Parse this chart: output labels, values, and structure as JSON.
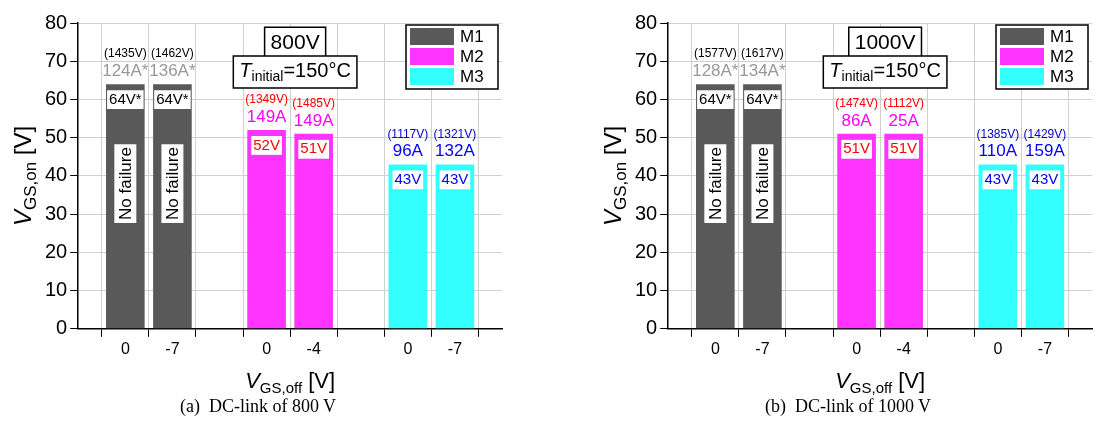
{
  "chart_data": [
    {
      "type": "bar",
      "categories": [
        null,
        "0",
        "-7",
        null,
        "0",
        "-4",
        null,
        "0",
        "-7",
        null
      ],
      "xlabel": "V$_{GS,off}$ [V]",
      "ylabel": "V$_{GS,on}$ [V]",
      "ylim": [
        0,
        80
      ],
      "yticks": [
        0,
        10,
        20,
        30,
        40,
        50,
        60,
        70,
        80
      ],
      "grid": true,
      "legend": "top right",
      "series": [
        {
          "name": "M1",
          "color": "#595959",
          "values": [
            null,
            64,
            64,
            null,
            null,
            null,
            null,
            null,
            null,
            null
          ],
          "value_labels": [
            null,
            "64V*",
            "64V*",
            null,
            null,
            null,
            null,
            null,
            null,
            null
          ]
        },
        {
          "name": "M2",
          "color": "#ff33ff",
          "values": [
            null,
            null,
            null,
            null,
            52,
            51,
            null,
            null,
            null,
            null
          ],
          "value_labels": [
            null,
            null,
            null,
            null,
            "52V",
            "51V",
            null,
            null,
            null,
            null
          ]
        },
        {
          "name": "M3",
          "color": "#33ffff",
          "values": [
            null,
            null,
            null,
            null,
            null,
            null,
            null,
            43,
            43,
            null
          ],
          "value_labels": [
            null,
            null,
            null,
            null,
            null,
            null,
            null,
            "43V",
            "43V",
            null
          ]
        }
      ],
      "annotations": [
        "(1435V)",
        "124A*",
        "(1462V)",
        "136A*",
        "(1349V)",
        "149A",
        "(1485V)",
        "149A",
        "(1117V)",
        "96A",
        "(1321V)",
        "132A",
        "No failure",
        "No failure",
        "800V",
        "T$_{initial}$=150°C",
        "(a)  DC-link of 800 V"
      ]
    },
    {
      "type": "bar",
      "categories": [
        null,
        "0",
        "-7",
        null,
        "0",
        "-4",
        null,
        "0",
        "-7",
        null
      ],
      "xlabel": "V$_{GS,off}$ [V]",
      "ylabel": "V$_{GS,on}$ [V]",
      "ylim": [
        0,
        80
      ],
      "yticks": [
        0,
        10,
        20,
        30,
        40,
        50,
        60,
        70,
        80
      ],
      "grid": true,
      "legend": "top right",
      "series": [
        {
          "name": "M1",
          "color": "#595959",
          "values": [
            null,
            64,
            64,
            null,
            null,
            null,
            null,
            null,
            null,
            null
          ],
          "value_labels": [
            null,
            "64V*",
            "64V*",
            null,
            null,
            null,
            null,
            null,
            null,
            null
          ]
        },
        {
          "name": "M2",
          "color": "#ff33ff",
          "values": [
            null,
            null,
            null,
            null,
            51,
            51,
            null,
            null,
            null,
            null
          ],
          "value_labels": [
            null,
            null,
            null,
            null,
            "51V",
            "51V",
            null,
            null,
            null,
            null
          ]
        },
        {
          "name": "M3",
          "color": "#33ffff",
          "values": [
            null,
            null,
            null,
            null,
            null,
            null,
            null,
            43,
            43,
            null
          ],
          "value_labels": [
            null,
            null,
            null,
            null,
            null,
            null,
            null,
            "43V",
            "43V",
            null
          ]
        }
      ],
      "annotations": [
        "(1577V)",
        "128A*",
        "(1617V)",
        "134A*",
        "(1474V)",
        "86A",
        "(1112V)",
        "25A",
        "(1385V)",
        "110A",
        "(1429V)",
        "159A",
        "No failure",
        "No failure",
        "1000V",
        "T$_{initial}$=150°C",
        "(b)  DC-link of 1000 V"
      ]
    }
  ]
}
